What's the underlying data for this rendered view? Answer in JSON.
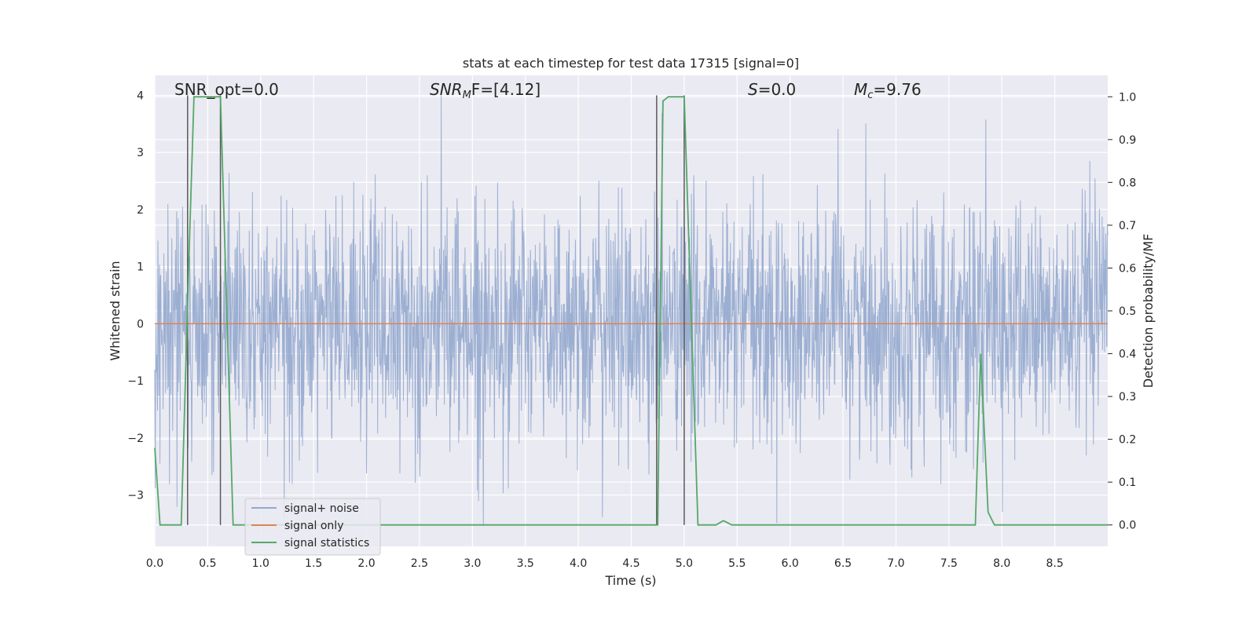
{
  "chart_data": {
    "type": "line",
    "title": "stats at each timestep for test data 17315 [signal=0]",
    "xlabel": "Time (s)",
    "ylabel_left": "Whitened strain",
    "ylabel_right": "Detection probability/MF",
    "xlim": [
      0.0,
      9.0
    ],
    "ylim_left": [
      -3.9,
      4.35
    ],
    "ylim_right": [
      -0.05,
      1.05
    ],
    "x_ticks": [
      "0.0",
      "0.5",
      "1.0",
      "1.5",
      "2.0",
      "2.5",
      "3.0",
      "3.5",
      "4.0",
      "4.5",
      "5.0",
      "5.5",
      "6.0",
      "6.5",
      "7.0",
      "7.5",
      "8.0",
      "8.5"
    ],
    "y_ticks_left": [
      "4",
      "3",
      "2",
      "1",
      "0",
      "−1",
      "−2",
      "−3"
    ],
    "y_ticks_right": [
      "1.0",
      "0.9",
      "0.8",
      "0.7",
      "0.6",
      "0.5",
      "0.4",
      "0.3",
      "0.2",
      "0.1",
      "0.0"
    ],
    "grid": true,
    "legend_position": "lower-left",
    "annotations": {
      "snr_opt": "SNR_opt=0.0",
      "snr_mf_base": "SNR",
      "snr_mf_sub": "M",
      "snr_mf_rest": "F=[4.12]",
      "s_sym": "S",
      "s_rest": "=0.0",
      "mc_base": "M",
      "mc_sub": "c",
      "mc_rest": "=9.76"
    },
    "series": [
      {
        "name": "signal+ noise",
        "color": "#94a9ce",
        "description": "whitened strain noise, approx. range -3.7 to 4.0",
        "seed": 17315
      },
      {
        "name": "signal only",
        "color": "#dd8452",
        "x": [
          0.0,
          9.0
        ],
        "y": [
          0.0,
          0.0
        ]
      },
      {
        "name": "signal statistics",
        "color": "#55a868",
        "axis": "right",
        "x": [
          0.0,
          0.05,
          0.25,
          0.32,
          0.37,
          0.62,
          0.74,
          0.8,
          4.7,
          4.75,
          4.8,
          4.85,
          5.0,
          5.13,
          5.3,
          5.37,
          5.45,
          7.75,
          7.8,
          7.87,
          7.93,
          8.8,
          9.0
        ],
        "y": [
          0.18,
          0.0,
          0.0,
          0.6,
          1.0,
          1.0,
          0.0,
          0.0,
          0.0,
          0.0,
          0.99,
          1.0,
          1.0,
          0.0,
          0.0,
          0.01,
          0.0,
          0.0,
          0.4,
          0.03,
          0.0,
          0.0,
          0.0
        ]
      }
    ],
    "vertical_markers": {
      "color": "#5a5a5a",
      "x": [
        0.31,
        0.62,
        4.74,
        5.0
      ],
      "y_top_left": 4.0,
      "y_bottom_right": 0.0
    }
  }
}
